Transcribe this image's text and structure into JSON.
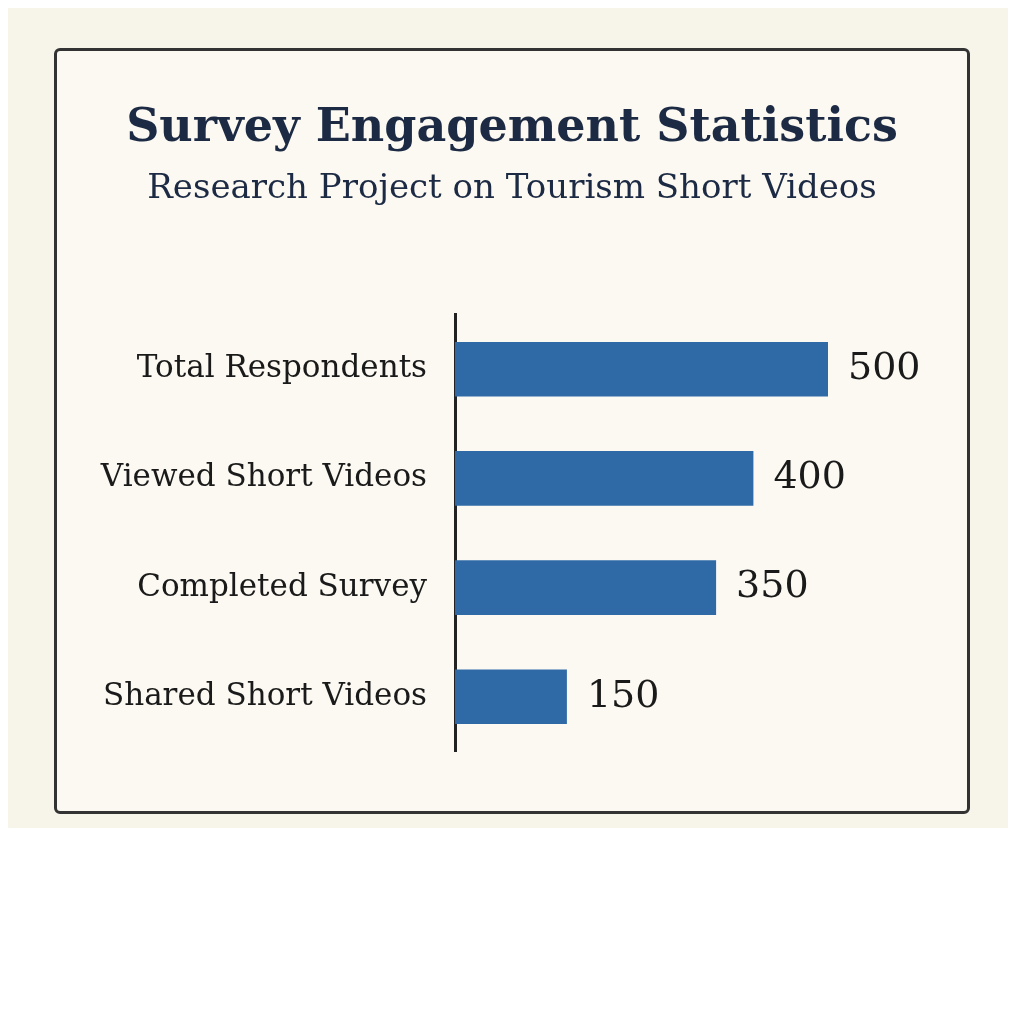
{
  "chart_data": {
    "type": "bar",
    "title": "Survey Engagement Statistics",
    "subtitle": "Research Project on Tourism Short Videos",
    "orientation": "horizontal",
    "categories": [
      "Total Respondents",
      "Viewed Short Videos",
      "Completed Survey",
      "Shared Short Videos"
    ],
    "values": [
      500,
      400,
      350,
      150
    ],
    "color": "#2f6aa7",
    "data_labels": true,
    "grid": false,
    "legend": false
  }
}
